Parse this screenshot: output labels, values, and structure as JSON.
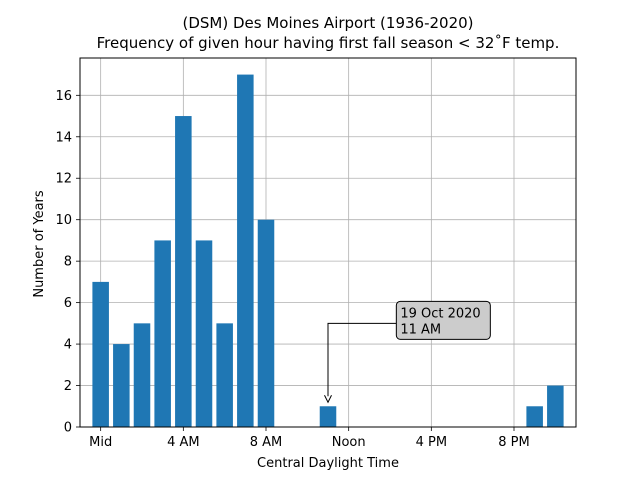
{
  "chart_data": {
    "type": "bar",
    "title_line1": "(DSM) Des Moines Airport (1936-2020)",
    "title_line2": "Frequency of given hour having first fall season < 32˚F temp.",
    "xlabel": "Central Daylight Time",
    "ylabel": "Number of Years",
    "xlim": [
      -1,
      23
    ],
    "ylim": [
      0,
      17.8
    ],
    "hours": [
      0,
      1,
      2,
      3,
      4,
      5,
      6,
      7,
      8,
      9,
      10,
      11,
      12,
      13,
      14,
      15,
      16,
      17,
      18,
      19,
      20,
      21,
      22,
      23
    ],
    "values": [
      7,
      4,
      5,
      9,
      15,
      9,
      5,
      17,
      10,
      0,
      0,
      1,
      0,
      0,
      0,
      0,
      0,
      0,
      0,
      0,
      0,
      1,
      2,
      0
    ],
    "xticks": [
      {
        "x": 0,
        "label": "Mid"
      },
      {
        "x": 4,
        "label": "4 AM"
      },
      {
        "x": 8,
        "label": "8 AM"
      },
      {
        "x": 12,
        "label": "Noon"
      },
      {
        "x": 16,
        "label": "4 PM"
      },
      {
        "x": 20,
        "label": "8 PM"
      }
    ],
    "yticks": [
      0,
      2,
      4,
      6,
      8,
      10,
      12,
      14,
      16
    ],
    "bar_color": "#1f77b4",
    "grid": true,
    "annotation": {
      "line1": "19 Oct 2020",
      "line2": "11 AM",
      "target_hour": 11,
      "target_value": 1,
      "label_hour": 14.5,
      "label_value": 5
    }
  }
}
